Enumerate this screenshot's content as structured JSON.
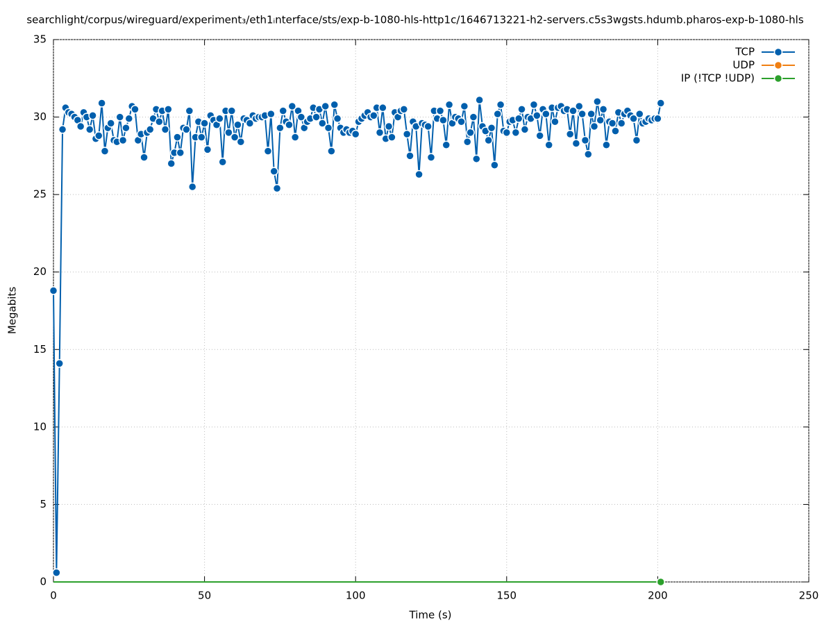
{
  "chart_data": {
    "type": "line",
    "title": "searchlight/corpus/wireguard/experiment₃/eth1ᵢnterface/sts/exp-b-1080-hls-http1c/1646713221-h2-servers.c5s3wgsts.hdumb.pharos-exp-b-1080-hls",
    "x_label": "Time (s)",
    "y_label": "Megabits",
    "xlim": [
      0,
      250
    ],
    "xticks": [
      0,
      50,
      100,
      150,
      200,
      250
    ],
    "ylim": [
      0,
      35
    ],
    "yticks": [
      0,
      5,
      10,
      15,
      20,
      25,
      30,
      35
    ],
    "grid": true,
    "legend": "top-right",
    "x": [
      0,
      1,
      2,
      3,
      4,
      5,
      6,
      7,
      8,
      9,
      10,
      11,
      12,
      13,
      14,
      15,
      16,
      17,
      18,
      19,
      20,
      21,
      22,
      23,
      24,
      25,
      26,
      27,
      28,
      29,
      30,
      31,
      32,
      33,
      34,
      35,
      36,
      37,
      38,
      39,
      40,
      41,
      42,
      43,
      44,
      45,
      46,
      47,
      48,
      49,
      50,
      51,
      52,
      53,
      54,
      55,
      56,
      57,
      58,
      59,
      60,
      61,
      62,
      63,
      64,
      65,
      66,
      67,
      68,
      69,
      70,
      71,
      72,
      73,
      74,
      75,
      76,
      77,
      78,
      79,
      80,
      81,
      82,
      83,
      84,
      85,
      86,
      87,
      88,
      89,
      90,
      91,
      92,
      93,
      94,
      95,
      96,
      97,
      98,
      99,
      100,
      101,
      102,
      103,
      104,
      105,
      106,
      107,
      108,
      109,
      110,
      111,
      112,
      113,
      114,
      115,
      116,
      117,
      118,
      119,
      120,
      121,
      122,
      123,
      124,
      125,
      126,
      127,
      128,
      129,
      130,
      131,
      132,
      133,
      134,
      135,
      136,
      137,
      138,
      139,
      140,
      141,
      142,
      143,
      144,
      145,
      146,
      147,
      148,
      149,
      150,
      151,
      152,
      153,
      154,
      155,
      156,
      157,
      158,
      159,
      160,
      161,
      162,
      163,
      164,
      165,
      166,
      167,
      168,
      169,
      170,
      171,
      172,
      173,
      174,
      175,
      176,
      177,
      178,
      179,
      180,
      181,
      182,
      183,
      184,
      185,
      186,
      187,
      188,
      189,
      190,
      191,
      192,
      193,
      194,
      195,
      196,
      197,
      198,
      199,
      200,
      201
    ],
    "series": [
      {
        "name": "TCP",
        "color": "#005fad",
        "values": [
          18.8,
          0.6,
          14.1,
          29.2,
          30.6,
          30.3,
          30.2,
          30.0,
          29.8,
          29.4,
          30.3,
          30.0,
          29.2,
          30.1,
          28.6,
          28.8,
          30.9,
          27.8,
          29.3,
          29.6,
          28.5,
          28.4,
          30.0,
          28.5,
          29.3,
          29.9,
          30.7,
          30.5,
          28.5,
          28.9,
          27.4,
          29.0,
          29.2,
          29.9,
          30.5,
          29.7,
          30.4,
          29.2,
          30.5,
          27.0,
          27.7,
          28.7,
          27.7,
          29.3,
          29.2,
          30.4,
          25.5,
          28.7,
          29.7,
          28.7,
          29.6,
          27.9,
          30.1,
          29.8,
          29.5,
          29.9,
          27.1,
          30.4,
          29.0,
          30.4,
          28.7,
          29.5,
          28.4,
          29.9,
          29.8,
          29.6,
          30.1,
          29.9,
          30.0,
          30.0,
          30.1,
          27.8,
          30.2,
          26.5,
          25.4,
          29.3,
          30.4,
          29.7,
          29.5,
          30.7,
          28.7,
          30.4,
          30.0,
          29.3,
          29.7,
          29.9,
          30.6,
          30.0,
          30.5,
          29.6,
          30.7,
          29.3,
          27.8,
          30.8,
          29.9,
          29.3,
          29.0,
          29.2,
          29.0,
          29.1,
          28.9,
          29.7,
          29.9,
          30.1,
          30.3,
          30.0,
          30.1,
          30.6,
          29.0,
          30.6,
          28.6,
          29.4,
          28.7,
          30.3,
          30.0,
          30.4,
          30.5,
          28.9,
          27.5,
          29.7,
          29.4,
          26.3,
          29.6,
          29.5,
          29.4,
          27.4,
          30.4,
          29.9,
          30.4,
          29.8,
          28.2,
          30.8,
          29.6,
          30.0,
          29.9,
          29.7,
          30.7,
          28.4,
          29.0,
          30.0,
          27.3,
          31.1,
          29.4,
          29.1,
          28.5,
          29.3,
          26.9,
          30.2,
          30.8,
          29.1,
          29.0,
          29.7,
          29.8,
          29.0,
          29.9,
          30.5,
          29.2,
          30.0,
          29.9,
          30.8,
          30.1,
          28.8,
          30.5,
          30.2,
          28.2,
          30.6,
          29.7,
          30.6,
          30.7,
          30.4,
          30.5,
          28.9,
          30.4,
          28.3,
          30.7,
          30.2,
          28.5,
          27.6,
          30.2,
          29.4,
          31.0,
          29.8,
          30.5,
          28.2,
          29.7,
          29.6,
          29.1,
          30.3,
          29.6,
          30.2,
          30.4,
          30.1,
          29.9,
          28.5,
          30.2,
          29.6,
          29.7,
          29.9,
          29.8,
          29.9,
          29.9,
          30.9
        ]
      },
      {
        "name": "UDP",
        "color": "#f07f12",
        "values": [
          0,
          0,
          0,
          0,
          0,
          0,
          0,
          0,
          0,
          0,
          0,
          0,
          0,
          0,
          0,
          0,
          0,
          0,
          0,
          0,
          0,
          0,
          0,
          0,
          0,
          0,
          0,
          0,
          0,
          0,
          0,
          0,
          0,
          0,
          0,
          0,
          0,
          0,
          0,
          0,
          0,
          0,
          0,
          0,
          0,
          0,
          0,
          0,
          0,
          0,
          0,
          0,
          0,
          0,
          0,
          0,
          0,
          0,
          0,
          0,
          0,
          0,
          0,
          0,
          0,
          0,
          0,
          0,
          0,
          0,
          0,
          0,
          0,
          0,
          0,
          0,
          0,
          0,
          0,
          0,
          0,
          0,
          0,
          0,
          0,
          0,
          0,
          0,
          0,
          0,
          0,
          0,
          0,
          0,
          0,
          0,
          0,
          0,
          0,
          0,
          0,
          0,
          0,
          0,
          0,
          0,
          0,
          0,
          0,
          0,
          0,
          0,
          0,
          0,
          0,
          0,
          0,
          0,
          0,
          0,
          0,
          0,
          0,
          0,
          0,
          0,
          0,
          0,
          0,
          0,
          0,
          0,
          0,
          0,
          0,
          0,
          0,
          0,
          0,
          0,
          0,
          0,
          0,
          0,
          0,
          0,
          0,
          0,
          0,
          0,
          0,
          0,
          0,
          0,
          0,
          0,
          0,
          0,
          0,
          0,
          0,
          0,
          0,
          0,
          0,
          0,
          0,
          0,
          0,
          0,
          0,
          0,
          0,
          0,
          0,
          0,
          0,
          0,
          0,
          0,
          0,
          0,
          0,
          0,
          0,
          0,
          0,
          0,
          0,
          0,
          0,
          0,
          0,
          0,
          0,
          0,
          0,
          0,
          0,
          0,
          0,
          0
        ]
      },
      {
        "name": "IP (!TCP  !UDP)",
        "color": "#2ca02c",
        "values": [
          0,
          0,
          0,
          0,
          0,
          0,
          0,
          0,
          0,
          0,
          0,
          0,
          0,
          0,
          0,
          0,
          0,
          0,
          0,
          0,
          0,
          0,
          0,
          0,
          0,
          0,
          0,
          0,
          0,
          0,
          0,
          0,
          0,
          0,
          0,
          0,
          0,
          0,
          0,
          0,
          0,
          0,
          0,
          0,
          0,
          0,
          0,
          0,
          0,
          0,
          0,
          0,
          0,
          0,
          0,
          0,
          0,
          0,
          0,
          0,
          0,
          0,
          0,
          0,
          0,
          0,
          0,
          0,
          0,
          0,
          0,
          0,
          0,
          0,
          0,
          0,
          0,
          0,
          0,
          0,
          0,
          0,
          0,
          0,
          0,
          0,
          0,
          0,
          0,
          0,
          0,
          0,
          0,
          0,
          0,
          0,
          0,
          0,
          0,
          0,
          0,
          0,
          0,
          0,
          0,
          0,
          0,
          0,
          0,
          0,
          0,
          0,
          0,
          0,
          0,
          0,
          0,
          0,
          0,
          0,
          0,
          0,
          0,
          0,
          0,
          0,
          0,
          0,
          0,
          0,
          0,
          0,
          0,
          0,
          0,
          0,
          0,
          0,
          0,
          0,
          0,
          0,
          0,
          0,
          0,
          0,
          0,
          0,
          0,
          0,
          0,
          0,
          0,
          0,
          0,
          0,
          0,
          0,
          0,
          0,
          0,
          0,
          0,
          0,
          0,
          0,
          0,
          0,
          0,
          0,
          0,
          0,
          0,
          0,
          0,
          0,
          0,
          0,
          0,
          0,
          0,
          0,
          0,
          0,
          0,
          0,
          0,
          0,
          0,
          0,
          0,
          0,
          0,
          0,
          0,
          0,
          0,
          0,
          0,
          0,
          0,
          0
        ]
      }
    ]
  }
}
